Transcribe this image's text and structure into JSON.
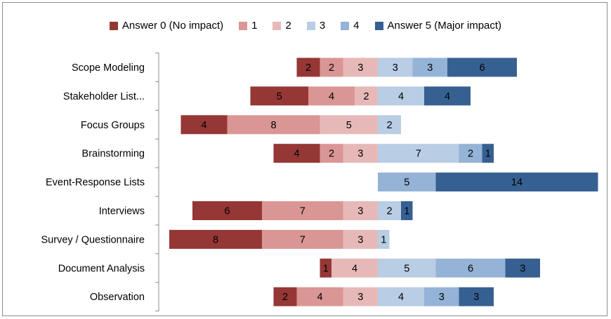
{
  "chart_data": {
    "type": "bar",
    "orientation": "horizontal",
    "stacking": "diverging",
    "categories": [
      "Scope Modeling",
      "Stakeholder List...",
      "Focus Groups",
      "Brainstorming",
      "Event-Response Lists",
      "Interviews",
      "Survey / Questionnaire",
      "Document Analysis",
      "Observation"
    ],
    "series": [
      {
        "name": "Answer 0 (No impact)",
        "color": "#953735",
        "values": [
          2,
          5,
          4,
          4,
          0,
          6,
          8,
          1,
          2
        ]
      },
      {
        "name": "1",
        "color": "#da9694",
        "values": [
          2,
          4,
          8,
          2,
          0,
          7,
          7,
          0,
          4
        ]
      },
      {
        "name": "2",
        "color": "#e6b9b8",
        "values": [
          3,
          2,
          5,
          3,
          0,
          3,
          3,
          4,
          3
        ]
      },
      {
        "name": "3",
        "color": "#b9cde5",
        "values": [
          3,
          4,
          2,
          7,
          0,
          2,
          1,
          5,
          4
        ]
      },
      {
        "name": "4",
        "color": "#95b3d7",
        "values": [
          3,
          0,
          0,
          2,
          5,
          0,
          0,
          6,
          3
        ]
      },
      {
        "name": "Answer 5 (Major impact)",
        "color": "#376092",
        "values": [
          6,
          4,
          0,
          1,
          14,
          1,
          0,
          3,
          3
        ]
      }
    ],
    "legend": {
      "position": "top"
    },
    "grid": false
  }
}
